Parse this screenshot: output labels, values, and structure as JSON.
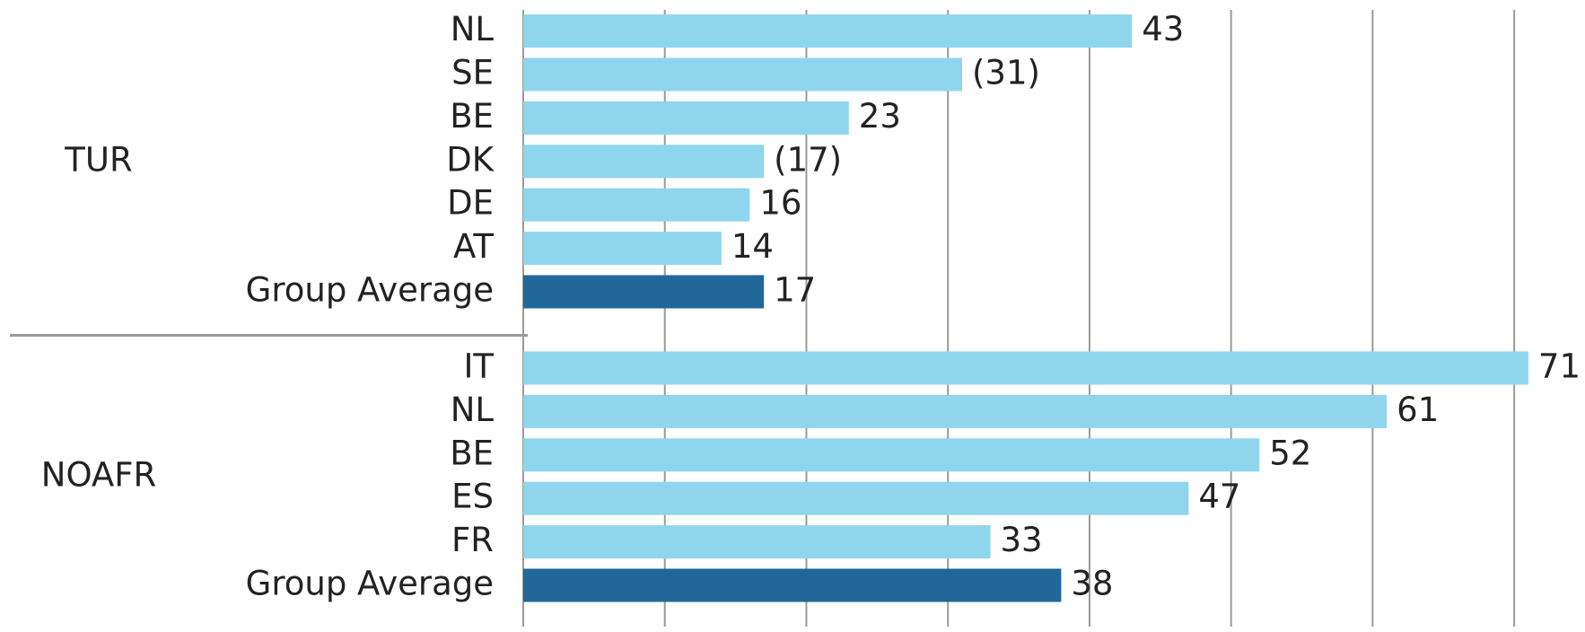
{
  "chart_data": {
    "type": "grouped-hbar",
    "groups": [
      {
        "name": "TUR",
        "categories": [
          "NL",
          "SE",
          "BE",
          "DK",
          "DE",
          "AT",
          "Group Average"
        ],
        "values": [
          43,
          31,
          23,
          17,
          16,
          14,
          17
        ],
        "value_labels": [
          "43",
          "(31)",
          "23",
          "(17)",
          "16",
          "14",
          "17"
        ],
        "colors": [
          "#8fd6ec",
          "#8fd6ec",
          "#8fd6ec",
          "#8fd6ec",
          "#8fd6ec",
          "#8fd6ec",
          "#21679a"
        ]
      },
      {
        "name": "NOAFR",
        "categories": [
          "IT",
          "NL",
          "BE",
          "ES",
          "FR",
          "Group Average"
        ],
        "values": [
          71,
          61,
          52,
          47,
          33,
          38
        ],
        "value_labels": [
          "71",
          "61",
          "52",
          "47",
          "33",
          "38"
        ],
        "colors": [
          "#8fd6ec",
          "#8fd6ec",
          "#8fd6ec",
          "#8fd6ec",
          "#8fd6ec",
          "#21679a"
        ]
      }
    ],
    "xlim": [
      0,
      75
    ],
    "xticks": [
      0,
      10,
      20,
      30,
      40,
      50,
      60,
      70
    ],
    "grid": true
  }
}
